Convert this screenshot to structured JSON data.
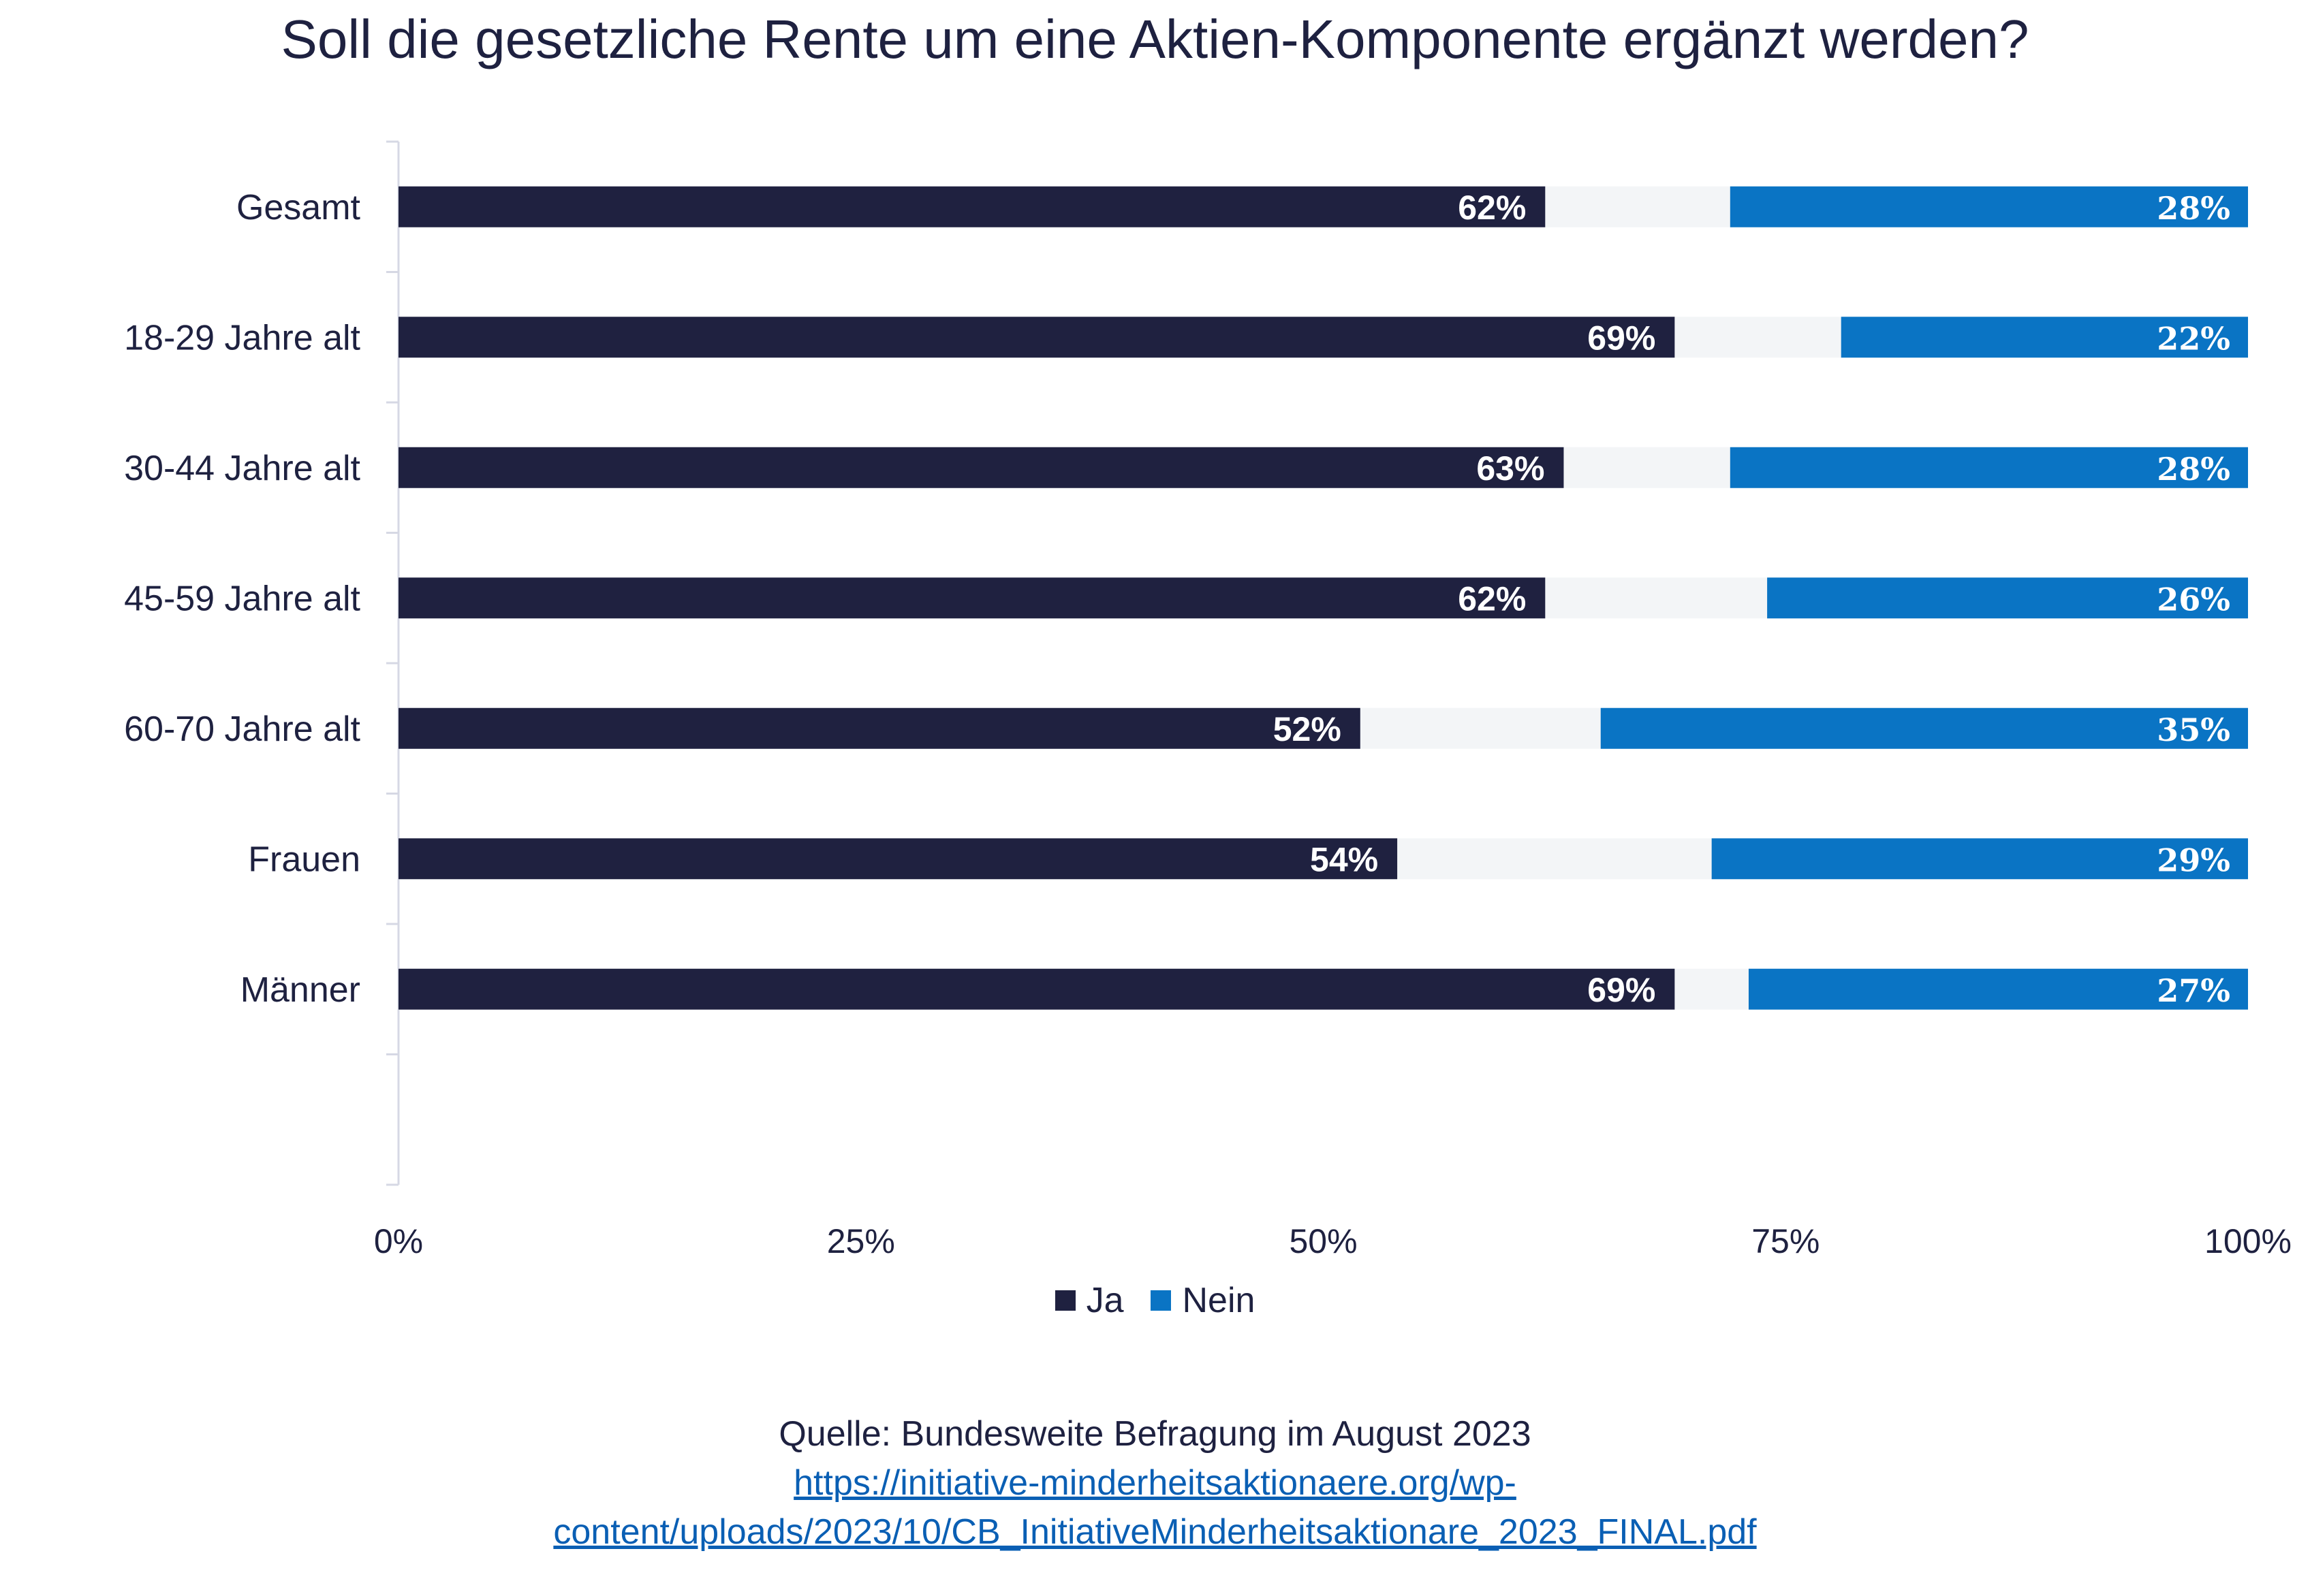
{
  "title": "Soll die gesetzliche Rente um eine Aktien-Komponente ergänzt werden?",
  "colors": {
    "ja": "#1f2140",
    "nein": "#0a74c4",
    "rest": "#f3f5f7",
    "axis": "#d6d8e4",
    "text": "#1e2140"
  },
  "chart_data": {
    "type": "bar",
    "orientation": "horizontal",
    "stacked": true,
    "categories": [
      "Gesamt",
      "18-29 Jahre alt",
      "30-44 Jahre alt",
      "45-59 Jahre alt",
      "60-70 Jahre alt",
      "Frauen",
      "Männer"
    ],
    "series": [
      {
        "name": "Ja",
        "values": [
          62,
          69,
          63,
          62,
          52,
          54,
          69
        ],
        "labels": [
          "62%",
          "69%",
          "63%",
          "62%",
          "52%",
          "54%",
          "69%"
        ]
      },
      {
        "name": "Nein",
        "values": [
          28,
          22,
          28,
          26,
          35,
          29,
          27
        ],
        "labels": [
          "28%",
          "22%",
          "28%",
          "26%",
          "35%",
          "29%",
          "27%"
        ]
      }
    ],
    "xlim": [
      0,
      100
    ],
    "xticks": [
      "0%",
      "25%",
      "50%",
      "75%",
      "100%"
    ],
    "legend": "bottom"
  },
  "source": {
    "text": "Quelle: Bundesweite Befragung im August 2023",
    "link_line1": "https://initiative-minderheitsaktionaere.org/wp-",
    "link_line2": "content/uploads/2023/10/CB_InitiativeMinderheitsaktionare_2023_FINAL.pdf"
  }
}
